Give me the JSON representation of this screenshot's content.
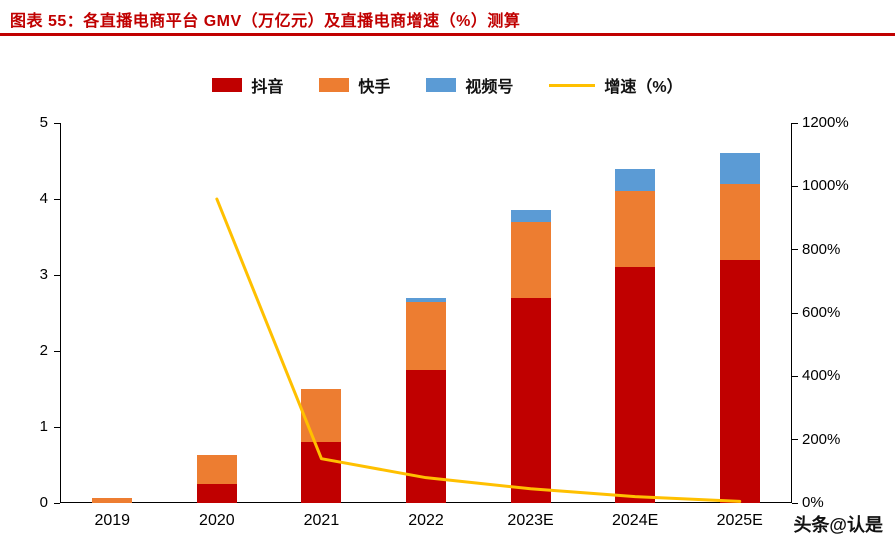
{
  "title": "图表 55：各直播电商平台 GMV（万亿元）及直播电商增速（%）测算",
  "watermark": "头条@认是",
  "colors": {
    "title": "#c00000",
    "title_rule": "#c00000",
    "axis": "#000000",
    "text": "#000000"
  },
  "chart_data": {
    "type": "bar",
    "stacked": true,
    "title": "图表 55：各直播电商平台 GMV（万亿元）及直播电商增速（%）测算",
    "categories": [
      "2019",
      "2020",
      "2021",
      "2022",
      "2023E",
      "2024E",
      "2025E"
    ],
    "series": [
      {
        "key": "douyin",
        "name": "抖音",
        "color": "#c00000",
        "values": [
          0,
          0.25,
          0.8,
          1.75,
          2.7,
          3.1,
          3.2
        ]
      },
      {
        "key": "kuaishou",
        "name": "快手",
        "color": "#ed7d31",
        "values": [
          0.06,
          0.38,
          0.7,
          0.9,
          1.0,
          1.0,
          1.0
        ]
      },
      {
        "key": "shipinhao",
        "name": "视频号",
        "color": "#5b9bd5",
        "values": [
          0,
          0,
          0,
          0.05,
          0.15,
          0.3,
          0.4
        ]
      }
    ],
    "line_series": {
      "key": "growth",
      "name": "增速（%）",
      "color": "#ffc000",
      "axis": "right",
      "values": [
        null,
        960,
        140,
        80,
        45,
        20,
        5
      ]
    },
    "left_axis": {
      "min": 0,
      "max": 5,
      "ticks": [
        0,
        1,
        2,
        3,
        4,
        5
      ],
      "unit": "万亿元"
    },
    "right_axis": {
      "min": 0,
      "max": 1200,
      "tick_labels": [
        "0%",
        "200%",
        "400%",
        "600%",
        "800%",
        "1000%",
        "1200%"
      ]
    },
    "legend_position": "top",
    "grid": false
  }
}
